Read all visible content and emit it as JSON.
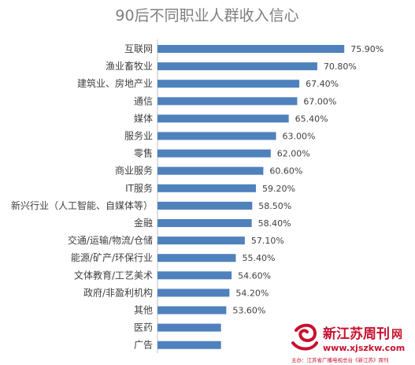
{
  "chart_data": {
    "type": "bar",
    "orientation": "horizontal",
    "title": "90后不同职业人群收入信心",
    "categories": [
      "互联网",
      "渔业畜牧业",
      "建筑业、房地产业",
      "通信",
      "媒体",
      "服务业",
      "零售",
      "商业服务",
      "IT服务",
      "新兴行业（人工智能、自媒体等）",
      "金融",
      "交通/运输/物流/仓储",
      "能源/矿产/环保行业",
      "文体教育/工艺美术",
      "政府/非盈利机构",
      "其他",
      "医药",
      "广告"
    ],
    "values": [
      75.9,
      70.8,
      67.4,
      67.0,
      65.4,
      63.0,
      62.0,
      60.6,
      59.2,
      58.5,
      58.4,
      57.1,
      55.4,
      54.6,
      54.2,
      53.6,
      52.6,
      52.6
    ],
    "value_labels": [
      "75.90%",
      "70.80%",
      "67.40%",
      "67.00%",
      "65.40%",
      "63.00%",
      "62.00%",
      "60.60%",
      "59.20%",
      "58.50%",
      "58.40%",
      "57.10%",
      "55.40%",
      "54.60%",
      "54.20%",
      "53.60%",
      null,
      null
    ],
    "bar_color": "#4f81bd",
    "grid": false,
    "legend": "none"
  },
  "watermark": {
    "brand": "新江苏周刊",
    "brand_suffix": "网",
    "url": "www.xjszkw.com",
    "footer": "主办：江苏省广播电视总台《新江苏》周刊",
    "colors": {
      "accent": "#c8102e"
    }
  }
}
